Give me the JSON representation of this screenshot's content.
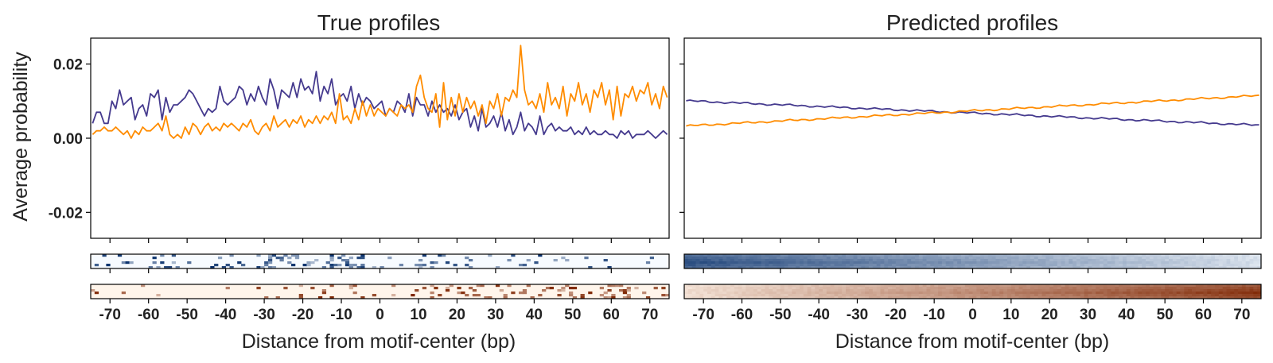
{
  "figure": {
    "ylabel": "Average probability",
    "colors": {
      "strand_a": "#453a8e",
      "strand_b": "#ff8c00",
      "frame": "#000000"
    }
  },
  "chart_data": [
    {
      "type": "line",
      "title": "True profiles",
      "xlabel": "Distance from motif-center (bp)",
      "ylabel": "Average probability",
      "xlim": [
        -75,
        75
      ],
      "ylim": [
        -0.027,
        0.027
      ],
      "yticks": [
        -0.02,
        0.0,
        0.02
      ],
      "ytick_labels": [
        "-0.02",
        "0.00",
        "0.02"
      ],
      "xticks": [
        -70,
        -60,
        -50,
        -40,
        -30,
        -20,
        -10,
        0,
        10,
        20,
        30,
        40,
        50,
        60,
        70
      ],
      "xtick_labels": [
        "-70",
        "-60",
        "-50",
        "-40",
        "-30",
        "-20",
        "-10",
        "0",
        "10",
        "20",
        "30",
        "40",
        "50",
        "60",
        "70"
      ],
      "grid": false,
      "series": [
        {
          "color": "#453a8e",
          "values": [
            0.004,
            0.007,
            0.007,
            0.004,
            0.004,
            0.01,
            0.008,
            0.013,
            0.009,
            0.01,
            0.011,
            0.005,
            0.008,
            0.009,
            0.006,
            0.012,
            0.011,
            0.013,
            0.005,
            0.011,
            0.007,
            0.009,
            0.009,
            0.01,
            0.011,
            0.013,
            0.012,
            0.01,
            0.008,
            0.006,
            0.008,
            0.007,
            0.008,
            0.014,
            0.01,
            0.009,
            0.01,
            0.011,
            0.014,
            0.013,
            0.009,
            0.012,
            0.01,
            0.014,
            0.011,
            0.009,
            0.016,
            0.013,
            0.008,
            0.013,
            0.012,
            0.011,
            0.015,
            0.011,
            0.016,
            0.013,
            0.014,
            0.012,
            0.018,
            0.01,
            0.014,
            0.012,
            0.016,
            0.009,
            0.011,
            0.012,
            0.01,
            0.014,
            0.008,
            0.012,
            0.009,
            0.011,
            0.01,
            0.008,
            0.009,
            0.01,
            0.006,
            0.008,
            0.007,
            0.01,
            0.009,
            0.007,
            0.012,
            0.006,
            0.011,
            0.009,
            0.009,
            0.006,
            0.01,
            0.007,
            0.009,
            0.007,
            0.008,
            0.006,
            0.009,
            0.005,
            0.007,
            0.008,
            0.003,
            0.006,
            0.002,
            0.008,
            0.003,
            0.004,
            0.006,
            0.003,
            0.007,
            0.002,
            0.005,
            0.001,
            0.003,
            0.007,
            0.002,
            0.004,
            0.003,
            0.001,
            0.006,
            0.001,
            0.003,
            0.004,
            0.002,
            0.003,
            0.002,
            0.002,
            0.003,
            0.001,
            0.002,
            0.001,
            0.003,
            0.001,
            0.002,
            0.001,
            0.001,
            0.002,
            0.001,
            0.001,
            0.0,
            0.002,
            0.001,
            0.002,
            0.0,
            0.001,
            0.001,
            0.001,
            0.002,
            0.001,
            0.0,
            0.001,
            0.002,
            0.001
          ]
        },
        {
          "color": "#ff8c00",
          "values": [
            0.001,
            0.002,
            0.002,
            0.003,
            0.002,
            0.002,
            0.003,
            0.002,
            0.001,
            0.002,
            0.0,
            0.002,
            0.001,
            0.003,
            0.002,
            0.002,
            0.003,
            0.004,
            0.002,
            0.006,
            0.001,
            0.0,
            0.001,
            0.0,
            0.003,
            0.001,
            0.004,
            0.003,
            0.001,
            0.003,
            0.004,
            0.002,
            0.003,
            0.002,
            0.004,
            0.003,
            0.004,
            0.003,
            0.002,
            0.004,
            0.003,
            0.005,
            0.002,
            0.001,
            0.003,
            0.004,
            0.002,
            0.006,
            0.003,
            0.004,
            0.005,
            0.003,
            0.005,
            0.004,
            0.006,
            0.003,
            0.005,
            0.004,
            0.006,
            0.004,
            0.006,
            0.005,
            0.007,
            0.004,
            0.012,
            0.005,
            0.006,
            0.004,
            0.008,
            0.005,
            0.01,
            0.006,
            0.009,
            0.006,
            0.008,
            0.007,
            0.006,
            0.008,
            0.007,
            0.006,
            0.009,
            0.008,
            0.009,
            0.007,
            0.014,
            0.017,
            0.011,
            0.008,
            0.007,
            0.012,
            0.003,
            0.015,
            0.005,
            0.011,
            0.006,
            0.012,
            0.007,
            0.011,
            0.008,
            0.01,
            0.006,
            0.009,
            0.004,
            0.01,
            0.008,
            0.012,
            0.006,
            0.011,
            0.01,
            0.013,
            0.011,
            0.025,
            0.013,
            0.009,
            0.01,
            0.008,
            0.012,
            0.007,
            0.015,
            0.009,
            0.011,
            0.008,
            0.014,
            0.006,
            0.012,
            0.01,
            0.015,
            0.009,
            0.012,
            0.007,
            0.013,
            0.011,
            0.015,
            0.009,
            0.013,
            0.005,
            0.014,
            0.006,
            0.012,
            0.011,
            0.014,
            0.01,
            0.013,
            0.012,
            0.015,
            0.009,
            0.012,
            0.008,
            0.014,
            0.011
          ]
        }
      ]
    },
    {
      "type": "line",
      "title": "Predicted profiles",
      "xlabel": "Distance from motif-center (bp)",
      "ylabel": "",
      "xlim": [
        -75,
        75
      ],
      "ylim": [
        -0.027,
        0.027
      ],
      "yticks": [
        -0.02,
        0.0,
        0.02
      ],
      "ytick_labels": [],
      "xticks": [
        -70,
        -60,
        -50,
        -40,
        -30,
        -20,
        -10,
        0,
        10,
        20,
        30,
        40,
        50,
        60,
        70
      ],
      "xtick_labels": [
        "-70",
        "-60",
        "-50",
        "-40",
        "-30",
        "-20",
        "-10",
        "0",
        "10",
        "20",
        "30",
        "40",
        "50",
        "60",
        "70"
      ],
      "grid": false,
      "series": [
        {
          "color": "#453a8e",
          "start": 0.0101,
          "end": 0.0035
        },
        {
          "color": "#ff8c00",
          "start": 0.0033,
          "end": 0.0115
        }
      ]
    },
    {
      "type": "heatmap",
      "panel": "true-strand-a",
      "colormap": "Blues",
      "rows": 6,
      "xlim": [
        -75,
        75
      ],
      "density_profile": [
        0.35,
        0.45,
        0.55,
        0.6,
        0.55,
        0.45,
        0.35,
        0.25,
        0.15,
        0.1
      ]
    },
    {
      "type": "heatmap",
      "panel": "true-strand-b",
      "colormap": "Oranges",
      "rows": 6,
      "xlim": [
        -75,
        75
      ],
      "density_profile": [
        0.08,
        0.1,
        0.12,
        0.15,
        0.2,
        0.25,
        0.35,
        0.45,
        0.5,
        0.5
      ]
    },
    {
      "type": "heatmap",
      "panel": "predicted-strand-a",
      "colormap": "Blues",
      "rows": 6,
      "xlim": [
        -75,
        75
      ],
      "intensity_start": 0.85,
      "intensity_end": 0.15
    },
    {
      "type": "heatmap",
      "panel": "predicted-strand-b",
      "colormap": "Oranges",
      "rows": 6,
      "xlim": [
        -75,
        75
      ],
      "intensity_start": 0.12,
      "intensity_end": 0.95
    }
  ]
}
